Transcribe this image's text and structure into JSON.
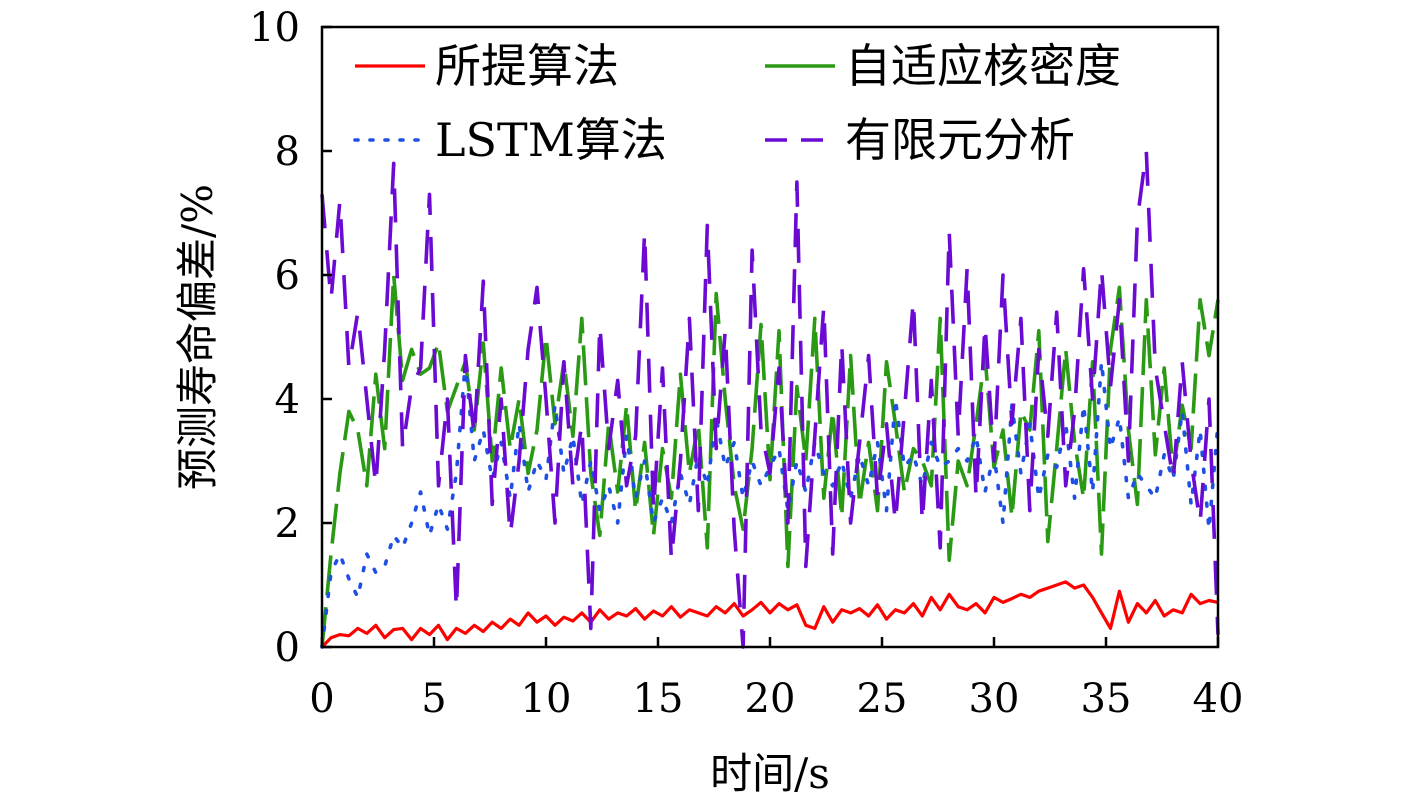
{
  "chart_data": {
    "type": "line",
    "title": "",
    "xlabel": "时间/s",
    "ylabel": "预测寿命偏差/%",
    "xlim": [
      0,
      40
    ],
    "ylim": [
      0,
      10
    ],
    "xticks": [
      0,
      5,
      10,
      15,
      20,
      25,
      30,
      35,
      40
    ],
    "yticks": [
      0,
      2,
      4,
      6,
      8,
      10
    ],
    "xtick_labels": [
      "0",
      "5",
      "10",
      "15",
      "20",
      "25",
      "30",
      "35",
      "40"
    ],
    "ytick_labels": [
      "0",
      "2",
      "4",
      "6",
      "8",
      "10"
    ],
    "grid": false,
    "legend_position": "top",
    "series": [
      {
        "name": "所提算法",
        "color": "#ff0000",
        "style": "solid",
        "x": [
          0,
          0.4,
          0.8,
          1.2,
          1.6,
          2,
          2.4,
          2.8,
          3.2,
          3.6,
          4,
          4.4,
          4.8,
          5.2,
          5.6,
          6,
          6.4,
          6.8,
          7.2,
          7.6,
          8,
          8.4,
          8.8,
          9.2,
          9.6,
          10,
          10.4,
          10.8,
          11.2,
          11.6,
          12,
          12.4,
          12.8,
          13.2,
          13.6,
          14,
          14.4,
          14.8,
          15.2,
          15.6,
          16,
          16.4,
          16.8,
          17.2,
          17.6,
          18,
          18.4,
          18.8,
          19.2,
          19.6,
          20,
          20.4,
          20.8,
          21.2,
          21.6,
          22,
          22.4,
          22.8,
          23.2,
          23.6,
          24,
          24.4,
          24.8,
          25.2,
          25.6,
          26,
          26.4,
          26.8,
          27.2,
          27.6,
          28,
          28.4,
          28.8,
          29.2,
          29.6,
          30,
          30.4,
          30.8,
          31.2,
          31.6,
          32,
          32.4,
          32.8,
          33.2,
          33.6,
          34,
          34.4,
          34.8,
          35.2,
          35.6,
          36,
          36.4,
          36.8,
          37.2,
          37.6,
          38,
          38.4,
          38.8,
          39.2,
          39.6,
          40
        ],
        "y": [
          0,
          0.15,
          0.2,
          0.18,
          0.3,
          0.22,
          0.35,
          0.15,
          0.28,
          0.3,
          0.12,
          0.3,
          0.2,
          0.35,
          0.12,
          0.3,
          0.22,
          0.35,
          0.25,
          0.4,
          0.3,
          0.45,
          0.35,
          0.55,
          0.4,
          0.5,
          0.35,
          0.48,
          0.42,
          0.55,
          0.4,
          0.6,
          0.45,
          0.55,
          0.5,
          0.62,
          0.45,
          0.58,
          0.5,
          0.65,
          0.48,
          0.6,
          0.55,
          0.5,
          0.65,
          0.55,
          0.7,
          0.5,
          0.6,
          0.72,
          0.55,
          0.7,
          0.6,
          0.68,
          0.35,
          0.3,
          0.65,
          0.4,
          0.6,
          0.55,
          0.62,
          0.5,
          0.68,
          0.45,
          0.6,
          0.55,
          0.7,
          0.5,
          0.8,
          0.6,
          0.85,
          0.65,
          0.6,
          0.7,
          0.55,
          0.8,
          0.72,
          0.78,
          0.85,
          0.8,
          0.9,
          0.95,
          1.0,
          1.05,
          0.95,
          1.0,
          0.8,
          0.55,
          0.3,
          0.9,
          0.4,
          0.7,
          0.55,
          0.75,
          0.5,
          0.6,
          0.55,
          0.85,
          0.7,
          0.75,
          0.72
        ]
      },
      {
        "name": "自适应核密度",
        "color": "#2a9a14",
        "style": "dashdot",
        "x": [
          0,
          0.4,
          0.8,
          1.2,
          1.6,
          2,
          2.4,
          2.8,
          3.2,
          3.6,
          4,
          4.4,
          4.8,
          5.2,
          5.6,
          6,
          6.4,
          6.8,
          7.2,
          7.6,
          8,
          8.4,
          8.8,
          9.2,
          9.6,
          10,
          10.4,
          10.8,
          11.2,
          11.6,
          12,
          12.4,
          12.8,
          13.2,
          13.6,
          14,
          14.4,
          14.8,
          15.2,
          15.6,
          16,
          16.4,
          16.8,
          17.2,
          17.6,
          18,
          18.4,
          18.8,
          19.2,
          19.6,
          20,
          20.4,
          20.8,
          21.2,
          21.6,
          22,
          22.4,
          22.8,
          23.2,
          23.6,
          24,
          24.4,
          24.8,
          25.2,
          25.6,
          26,
          26.4,
          26.8,
          27.2,
          27.6,
          28,
          28.4,
          28.8,
          29.2,
          29.6,
          30,
          30.4,
          30.8,
          31.2,
          31.6,
          32,
          32.4,
          32.8,
          33.2,
          33.6,
          34,
          34.4,
          34.8,
          35.2,
          35.6,
          36,
          36.4,
          36.8,
          37.2,
          37.6,
          38,
          38.4,
          38.8,
          39.2,
          39.6,
          40
        ],
        "y": [
          0,
          1.5,
          2.8,
          3.8,
          3.5,
          2.6,
          4.4,
          3.2,
          6.0,
          4.3,
          4.8,
          4.4,
          4.5,
          4.9,
          3.8,
          4.2,
          4.6,
          3.5,
          4.9,
          3.0,
          4.5,
          3.2,
          4.0,
          2.8,
          3.5,
          5.0,
          3.6,
          4.6,
          3.4,
          5.3,
          2.8,
          1.8,
          3.6,
          2.5,
          3.9,
          2.2,
          3.3,
          1.8,
          3.2,
          2.4,
          4.4,
          2.8,
          3.6,
          1.6,
          5.7,
          4.0,
          2.6,
          1.9,
          3.2,
          5.2,
          2.7,
          5.1,
          1.3,
          4.2,
          3.0,
          5.3,
          2.4,
          3.8,
          2.1,
          4.7,
          2.3,
          3.3,
          2.2,
          4.6,
          3.6,
          2.5,
          3.2,
          3.0,
          2.6,
          5.3,
          1.4,
          3.0,
          2.6,
          3.6,
          4.7,
          2.9,
          3.5,
          2.1,
          3.8,
          3.5,
          5.1,
          1.7,
          3.2,
          4.8,
          3.3,
          2.4,
          4.6,
          1.5,
          4.8,
          5.8,
          3.5,
          2.3,
          5.6,
          3.1,
          4.5,
          2.8,
          3.9,
          3.2,
          5.6,
          4.7,
          5.6
        ]
      },
      {
        "name": "LSTM算法",
        "color": "#1e50e6",
        "style": "dotted",
        "x": [
          0,
          0.4,
          0.8,
          1.2,
          1.6,
          2,
          2.4,
          2.8,
          3.2,
          3.6,
          4,
          4.4,
          4.8,
          5.2,
          5.6,
          6,
          6.4,
          6.8,
          7.2,
          7.6,
          8,
          8.4,
          8.8,
          9.2,
          9.6,
          10,
          10.4,
          10.8,
          11.2,
          11.6,
          12,
          12.4,
          12.8,
          13.2,
          13.6,
          14,
          14.4,
          14.8,
          15.2,
          15.6,
          16,
          16.4,
          16.8,
          17.2,
          17.6,
          18,
          18.4,
          18.8,
          19.2,
          19.6,
          20,
          20.4,
          20.8,
          21.2,
          21.6,
          22,
          22.4,
          22.8,
          23.2,
          23.6,
          24,
          24.4,
          24.8,
          25.2,
          25.6,
          26,
          26.4,
          26.8,
          27.2,
          27.6,
          28,
          28.4,
          28.8,
          29.2,
          29.6,
          30,
          30.4,
          30.8,
          31.2,
          31.6,
          32,
          32.4,
          32.8,
          33.2,
          33.6,
          34,
          34.4,
          34.8,
          35.2,
          35.6,
          36,
          36.4,
          36.8,
          37.2,
          37.6,
          38,
          38.4,
          38.8,
          39.2,
          39.6,
          40
        ],
        "y": [
          0,
          1.2,
          1.5,
          1.1,
          0.8,
          1.5,
          1.2,
          1.3,
          1.8,
          1.6,
          2.0,
          2.5,
          1.8,
          2.3,
          1.9,
          2.8,
          4.6,
          3.0,
          3.5,
          2.7,
          3.3,
          2.4,
          3.6,
          2.5,
          3.0,
          2.7,
          3.9,
          2.8,
          3.4,
          2.3,
          3.0,
          2.2,
          2.6,
          2.0,
          3.4,
          2.4,
          3.0,
          2.0,
          2.4,
          2.0,
          2.8,
          2.3,
          3.1,
          2.6,
          3.7,
          2.9,
          3.3,
          2.4,
          3.0,
          2.6,
          2.9,
          3.2,
          2.2,
          3.0,
          2.5,
          3.3,
          2.8,
          2.6,
          3.0,
          2.4,
          3.1,
          2.6,
          3.3,
          2.2,
          4.0,
          2.9,
          3.1,
          2.6,
          3.3,
          2.9,
          3.0,
          3.2,
          3.0,
          3.4,
          2.5,
          3.1,
          2.0,
          3.9,
          2.8,
          3.6,
          2.4,
          3.1,
          2.9,
          3.6,
          2.4,
          3.9,
          2.5,
          4.6,
          3.2,
          3.7,
          2.4,
          2.8,
          2.6,
          2.4,
          3.1,
          2.7,
          3.8,
          2.3,
          3.5,
          1.9,
          3.6
        ]
      },
      {
        "name": "有限元分析",
        "color": "#6a0ad2",
        "style": "dashed",
        "x": [
          0,
          0.4,
          0.8,
          1.2,
          1.6,
          2,
          2.4,
          2.8,
          3.2,
          3.6,
          4,
          4.4,
          4.8,
          5.2,
          5.6,
          6,
          6.4,
          6.8,
          7.2,
          7.6,
          8,
          8.4,
          8.8,
          9.2,
          9.6,
          10,
          10.4,
          10.8,
          11.2,
          11.6,
          12,
          12.4,
          12.8,
          13.2,
          13.6,
          14,
          14.4,
          14.8,
          15.2,
          15.6,
          16,
          16.4,
          16.8,
          17.2,
          17.6,
          18,
          18.4,
          18.8,
          19.2,
          19.6,
          20,
          20.4,
          20.8,
          21.2,
          21.6,
          22,
          22.4,
          22.8,
          23.2,
          23.6,
          24,
          24.4,
          24.8,
          25.2,
          25.6,
          26,
          26.4,
          26.8,
          27.2,
          27.6,
          28,
          28.4,
          28.8,
          29.2,
          29.6,
          30,
          30.4,
          30.8,
          31.2,
          31.6,
          32,
          32.4,
          32.8,
          33.2,
          33.6,
          34,
          34.4,
          34.8,
          35.2,
          35.6,
          36,
          36.4,
          36.8,
          37.2,
          37.6,
          38,
          38.4,
          38.8,
          39.2,
          39.6,
          40
        ],
        "y": [
          7.3,
          5.6,
          7.2,
          4.5,
          5.4,
          4.0,
          2.6,
          4.8,
          7.8,
          3.2,
          4.2,
          4.5,
          7.3,
          2.6,
          4.0,
          0.6,
          4.7,
          3.4,
          5.9,
          2.3,
          4.0,
          1.8,
          3.0,
          4.8,
          5.8,
          4.0,
          2.0,
          4.6,
          2.6,
          3.6,
          0.3,
          5.2,
          3.2,
          4.3,
          2.6,
          3.4,
          6.7,
          2.2,
          4.5,
          1.4,
          3.0,
          5.3,
          2.2,
          6.8,
          3.2,
          5.1,
          1.9,
          0.0,
          6.4,
          3.5,
          2.8,
          4.5,
          2.0,
          7.5,
          1.3,
          3.4,
          5.5,
          1.5,
          4.9,
          2.0,
          3.3,
          4.7,
          2.4,
          3.6,
          2.0,
          3.8,
          5.6,
          2.0,
          4.3,
          1.6,
          6.7,
          3.4,
          6.1,
          2.4,
          5.2,
          3.0,
          6.0,
          3.6,
          5.3,
          2.2,
          4.8,
          3.4,
          5.4,
          2.6,
          3.8,
          6.1,
          4.0,
          6.1,
          4.2,
          5.6,
          3.0,
          6.9,
          8.0,
          4.5,
          3.6,
          2.7,
          4.6,
          3.0,
          2.0,
          4.0,
          0.2
        ]
      }
    ]
  }
}
